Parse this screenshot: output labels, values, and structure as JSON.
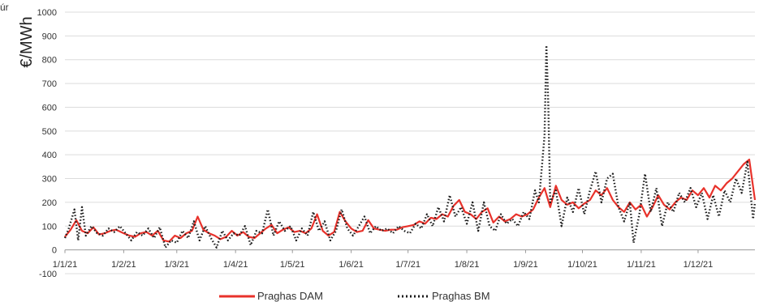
{
  "chart_data": {
    "type": "line",
    "title": "",
    "corner_label": "úr",
    "ylabel": "€/MWh",
    "xlabel": "",
    "ylim": [
      -100,
      1000
    ],
    "yticks": [
      -100,
      0,
      100,
      200,
      300,
      400,
      500,
      600,
      700,
      800,
      900,
      1000
    ],
    "xlim": [
      "2021-01-01",
      "2021-12-31"
    ],
    "x_ticks": [
      {
        "date": "2021-01-01",
        "label": "1/1/21"
      },
      {
        "date": "2021-02-01",
        "label": "1/2/21"
      },
      {
        "date": "2021-03-01",
        "label": "1/3/21"
      },
      {
        "date": "2021-04-01",
        "label": "1/4/21"
      },
      {
        "date": "2021-05-01",
        "label": "1/5/21"
      },
      {
        "date": "2021-06-01",
        "label": "1/6/21"
      },
      {
        "date": "2021-07-01",
        "label": "1/7/21"
      },
      {
        "date": "2021-08-01",
        "label": "1/8/21"
      },
      {
        "date": "2021-09-01",
        "label": "1/9/21"
      },
      {
        "date": "2021-10-01",
        "label": "1/10/21"
      },
      {
        "date": "2021-11-01",
        "label": "1/11/21"
      },
      {
        "date": "2021-12-01",
        "label": "1/12/21"
      }
    ],
    "grid": "horizontal",
    "legend_position": "bottom",
    "series": [
      {
        "name": "Praghas DAM",
        "color": "#e8322b",
        "style": "solid",
        "points": [
          [
            "2021-01-01",
            55
          ],
          [
            "2021-01-04",
            85
          ],
          [
            "2021-01-07",
            125
          ],
          [
            "2021-01-10",
            80
          ],
          [
            "2021-01-13",
            70
          ],
          [
            "2021-01-16",
            95
          ],
          [
            "2021-01-19",
            65
          ],
          [
            "2021-01-22",
            70
          ],
          [
            "2021-01-25",
            80
          ],
          [
            "2021-01-28",
            85
          ],
          [
            "2021-02-01",
            70
          ],
          [
            "2021-02-04",
            60
          ],
          [
            "2021-02-07",
            55
          ],
          [
            "2021-02-10",
            70
          ],
          [
            "2021-02-13",
            75
          ],
          [
            "2021-02-16",
            60
          ],
          [
            "2021-02-19",
            80
          ],
          [
            "2021-02-22",
            40
          ],
          [
            "2021-02-25",
            35
          ],
          [
            "2021-02-28",
            60
          ],
          [
            "2021-03-03",
            50
          ],
          [
            "2021-03-06",
            70
          ],
          [
            "2021-03-09",
            80
          ],
          [
            "2021-03-12",
            140
          ],
          [
            "2021-03-15",
            85
          ],
          [
            "2021-03-18",
            70
          ],
          [
            "2021-03-21",
            60
          ],
          [
            "2021-03-24",
            45
          ],
          [
            "2021-03-27",
            55
          ],
          [
            "2021-03-30",
            80
          ],
          [
            "2021-04-02",
            60
          ],
          [
            "2021-04-05",
            75
          ],
          [
            "2021-04-08",
            55
          ],
          [
            "2021-04-11",
            50
          ],
          [
            "2021-04-14",
            70
          ],
          [
            "2021-04-17",
            90
          ],
          [
            "2021-04-20",
            105
          ],
          [
            "2021-04-23",
            70
          ],
          [
            "2021-04-26",
            85
          ],
          [
            "2021-04-29",
            95
          ],
          [
            "2021-05-02",
            75
          ],
          [
            "2021-05-05",
            80
          ],
          [
            "2021-05-08",
            70
          ],
          [
            "2021-05-11",
            90
          ],
          [
            "2021-05-14",
            150
          ],
          [
            "2021-05-17",
            80
          ],
          [
            "2021-05-20",
            60
          ],
          [
            "2021-05-23",
            75
          ],
          [
            "2021-05-26",
            160
          ],
          [
            "2021-05-29",
            120
          ],
          [
            "2021-06-01",
            90
          ],
          [
            "2021-06-04",
            75
          ],
          [
            "2021-06-07",
            80
          ],
          [
            "2021-06-10",
            125
          ],
          [
            "2021-06-13",
            90
          ],
          [
            "2021-06-16",
            85
          ],
          [
            "2021-06-19",
            80
          ],
          [
            "2021-06-22",
            85
          ],
          [
            "2021-06-25",
            85
          ],
          [
            "2021-06-28",
            95
          ],
          [
            "2021-07-01",
            100
          ],
          [
            "2021-07-04",
            105
          ],
          [
            "2021-07-07",
            120
          ],
          [
            "2021-07-10",
            110
          ],
          [
            "2021-07-13",
            135
          ],
          [
            "2021-07-16",
            130
          ],
          [
            "2021-07-19",
            150
          ],
          [
            "2021-07-22",
            140
          ],
          [
            "2021-07-25",
            185
          ],
          [
            "2021-07-28",
            210
          ],
          [
            "2021-07-31",
            160
          ],
          [
            "2021-08-03",
            150
          ],
          [
            "2021-08-06",
            130
          ],
          [
            "2021-08-09",
            160
          ],
          [
            "2021-08-12",
            175
          ],
          [
            "2021-08-15",
            115
          ],
          [
            "2021-08-18",
            140
          ],
          [
            "2021-08-21",
            120
          ],
          [
            "2021-08-24",
            130
          ],
          [
            "2021-08-27",
            150
          ],
          [
            "2021-08-30",
            140
          ],
          [
            "2021-09-02",
            150
          ],
          [
            "2021-09-05",
            170
          ],
          [
            "2021-09-08",
            220
          ],
          [
            "2021-09-11",
            260
          ],
          [
            "2021-09-14",
            180
          ],
          [
            "2021-09-17",
            270
          ],
          [
            "2021-09-20",
            210
          ],
          [
            "2021-09-23",
            190
          ],
          [
            "2021-09-26",
            200
          ],
          [
            "2021-09-29",
            175
          ],
          [
            "2021-10-02",
            195
          ],
          [
            "2021-10-05",
            210
          ],
          [
            "2021-10-08",
            250
          ],
          [
            "2021-10-11",
            230
          ],
          [
            "2021-10-14",
            260
          ],
          [
            "2021-10-17",
            210
          ],
          [
            "2021-10-20",
            180
          ],
          [
            "2021-10-23",
            160
          ],
          [
            "2021-10-26",
            200
          ],
          [
            "2021-10-29",
            170
          ],
          [
            "2021-11-01",
            190
          ],
          [
            "2021-11-04",
            140
          ],
          [
            "2021-11-07",
            180
          ],
          [
            "2021-11-10",
            230
          ],
          [
            "2021-11-13",
            190
          ],
          [
            "2021-11-16",
            170
          ],
          [
            "2021-11-19",
            200
          ],
          [
            "2021-11-22",
            220
          ],
          [
            "2021-11-25",
            210
          ],
          [
            "2021-11-28",
            250
          ],
          [
            "2021-12-01",
            230
          ],
          [
            "2021-12-04",
            260
          ],
          [
            "2021-12-07",
            220
          ],
          [
            "2021-12-10",
            270
          ],
          [
            "2021-12-13",
            250
          ],
          [
            "2021-12-16",
            280
          ],
          [
            "2021-12-19",
            300
          ],
          [
            "2021-12-22",
            330
          ],
          [
            "2021-12-25",
            360
          ],
          [
            "2021-12-28",
            380
          ],
          [
            "2021-12-31",
            210
          ]
        ]
      },
      {
        "name": "Praghas BM",
        "color": "#1a1a1a",
        "style": "dotted",
        "points": [
          [
            "2021-01-01",
            50
          ],
          [
            "2021-01-03",
            90
          ],
          [
            "2021-01-06",
            170
          ],
          [
            "2021-01-08",
            40
          ],
          [
            "2021-01-10",
            180
          ],
          [
            "2021-01-12",
            60
          ],
          [
            "2021-01-15",
            100
          ],
          [
            "2021-01-18",
            70
          ],
          [
            "2021-01-21",
            60
          ],
          [
            "2021-01-24",
            90
          ],
          [
            "2021-01-27",
            75
          ],
          [
            "2021-01-30",
            100
          ],
          [
            "2021-02-02",
            70
          ],
          [
            "2021-02-05",
            40
          ],
          [
            "2021-02-08",
            75
          ],
          [
            "2021-02-11",
            60
          ],
          [
            "2021-02-14",
            90
          ],
          [
            "2021-02-17",
            50
          ],
          [
            "2021-02-20",
            95
          ],
          [
            "2021-02-23",
            10
          ],
          [
            "2021-02-26",
            40
          ],
          [
            "2021-03-01",
            30
          ],
          [
            "2021-03-04",
            80
          ],
          [
            "2021-03-07",
            50
          ],
          [
            "2021-03-10",
            120
          ],
          [
            "2021-03-13",
            40
          ],
          [
            "2021-03-16",
            100
          ],
          [
            "2021-03-19",
            50
          ],
          [
            "2021-03-22",
            10
          ],
          [
            "2021-03-25",
            80
          ],
          [
            "2021-03-28",
            40
          ],
          [
            "2021-03-31",
            70
          ],
          [
            "2021-04-03",
            60
          ],
          [
            "2021-04-06",
            100
          ],
          [
            "2021-04-09",
            20
          ],
          [
            "2021-04-12",
            80
          ],
          [
            "2021-04-15",
            70
          ],
          [
            "2021-04-18",
            170
          ],
          [
            "2021-04-21",
            60
          ],
          [
            "2021-04-24",
            120
          ],
          [
            "2021-04-27",
            80
          ],
          [
            "2021-04-30",
            100
          ],
          [
            "2021-05-03",
            40
          ],
          [
            "2021-05-06",
            90
          ],
          [
            "2021-05-09",
            60
          ],
          [
            "2021-05-12",
            160
          ],
          [
            "2021-05-15",
            80
          ],
          [
            "2021-05-18",
            120
          ],
          [
            "2021-05-21",
            40
          ],
          [
            "2021-05-24",
            80
          ],
          [
            "2021-05-27",
            170
          ],
          [
            "2021-05-30",
            90
          ],
          [
            "2021-06-02",
            60
          ],
          [
            "2021-06-05",
            100
          ],
          [
            "2021-06-08",
            140
          ],
          [
            "2021-06-11",
            70
          ],
          [
            "2021-06-14",
            100
          ],
          [
            "2021-06-17",
            80
          ],
          [
            "2021-06-20",
            90
          ],
          [
            "2021-06-23",
            70
          ],
          [
            "2021-06-26",
            100
          ],
          [
            "2021-06-29",
            80
          ],
          [
            "2021-07-02",
            70
          ],
          [
            "2021-07-05",
            110
          ],
          [
            "2021-07-08",
            90
          ],
          [
            "2021-07-11",
            150
          ],
          [
            "2021-07-14",
            100
          ],
          [
            "2021-07-17",
            180
          ],
          [
            "2021-07-20",
            120
          ],
          [
            "2021-07-23",
            230
          ],
          [
            "2021-07-26",
            140
          ],
          [
            "2021-07-29",
            180
          ],
          [
            "2021-08-01",
            110
          ],
          [
            "2021-08-04",
            200
          ],
          [
            "2021-08-07",
            80
          ],
          [
            "2021-08-10",
            200
          ],
          [
            "2021-08-13",
            100
          ],
          [
            "2021-08-16",
            80
          ],
          [
            "2021-08-19",
            150
          ],
          [
            "2021-08-22",
            110
          ],
          [
            "2021-08-25",
            130
          ],
          [
            "2021-08-28",
            100
          ],
          [
            "2021-08-31",
            160
          ],
          [
            "2021-09-03",
            130
          ],
          [
            "2021-09-06",
            250
          ],
          [
            "2021-09-08",
            200
          ],
          [
            "2021-09-11",
            480
          ],
          [
            "2021-09-12",
            860
          ],
          [
            "2021-09-13",
            600
          ],
          [
            "2021-09-14",
            200
          ],
          [
            "2021-09-17",
            250
          ],
          [
            "2021-09-20",
            100
          ],
          [
            "2021-09-23",
            220
          ],
          [
            "2021-09-26",
            160
          ],
          [
            "2021-09-29",
            260
          ],
          [
            "2021-10-02",
            150
          ],
          [
            "2021-10-05",
            250
          ],
          [
            "2021-10-08",
            330
          ],
          [
            "2021-10-11",
            200
          ],
          [
            "2021-10-14",
            300
          ],
          [
            "2021-10-17",
            320
          ],
          [
            "2021-10-20",
            180
          ],
          [
            "2021-10-23",
            120
          ],
          [
            "2021-10-26",
            200
          ],
          [
            "2021-10-28",
            30
          ],
          [
            "2021-10-31",
            150
          ],
          [
            "2021-11-03",
            320
          ],
          [
            "2021-11-06",
            160
          ],
          [
            "2021-11-09",
            260
          ],
          [
            "2021-11-12",
            100
          ],
          [
            "2021-11-15",
            200
          ],
          [
            "2021-11-18",
            160
          ],
          [
            "2021-11-21",
            240
          ],
          [
            "2021-11-24",
            200
          ],
          [
            "2021-11-27",
            260
          ],
          [
            "2021-11-30",
            180
          ],
          [
            "2021-12-03",
            240
          ],
          [
            "2021-12-06",
            130
          ],
          [
            "2021-12-09",
            230
          ],
          [
            "2021-12-12",
            140
          ],
          [
            "2021-12-15",
            250
          ],
          [
            "2021-12-18",
            200
          ],
          [
            "2021-12-21",
            300
          ],
          [
            "2021-12-24",
            240
          ],
          [
            "2021-12-27",
            370
          ],
          [
            "2021-12-30",
            130
          ],
          [
            "2021-12-31",
            200
          ]
        ]
      }
    ]
  }
}
